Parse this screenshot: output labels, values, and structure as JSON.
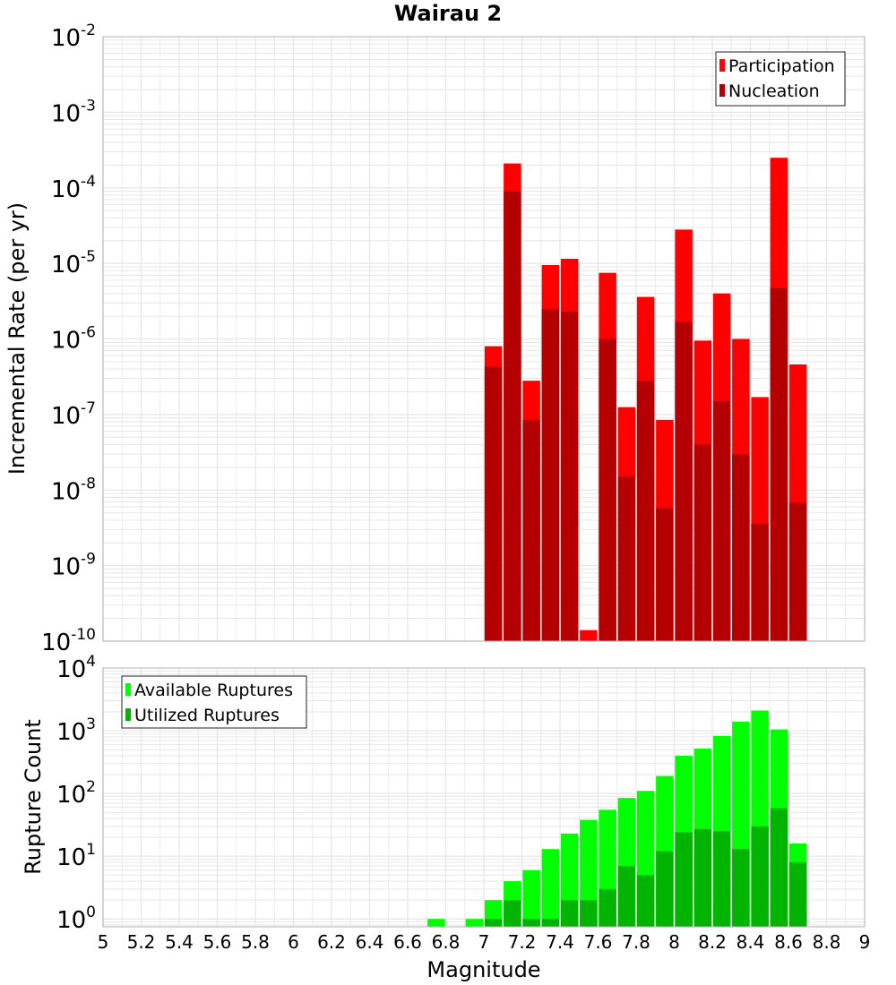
{
  "chart_data": [
    {
      "type": "bar",
      "title": "Wairau 2",
      "ylabel": "Incremental Rate (per yr)",
      "xlabel": "",
      "y_scale": "log",
      "ylim": [
        1e-10,
        0.01
      ],
      "xlim": [
        5,
        9
      ],
      "grid": true,
      "legend_position": "top-right",
      "x": [
        7.05,
        7.15,
        7.25,
        7.35,
        7.45,
        7.55,
        7.65,
        7.75,
        7.85,
        7.95,
        8.05,
        8.15,
        8.25,
        8.35,
        8.45,
        8.55,
        8.65
      ],
      "series": [
        {
          "name": "Participation",
          "color": "#ff0000",
          "values": [
            8e-07,
            0.00021,
            2.8e-07,
            9.5e-06,
            1.15e-05,
            1.4e-10,
            7.5e-06,
            1.25e-07,
            3.6e-06,
            8.5e-08,
            2.8e-05,
            9.5e-07,
            4e-06,
            1e-06,
            1.7e-07,
            0.00025,
            4.6e-07
          ]
        },
        {
          "name": "Nucleation",
          "color": "#b40000",
          "values": [
            4.3e-07,
            9e-05,
            8.5e-08,
            2.5e-06,
            2.3e-06,
            null,
            1e-06,
            1.5e-08,
            2.8e-07,
            5.8e-09,
            1.7e-06,
            4e-08,
            1.5e-07,
            3e-08,
            3.6e-09,
            4.7e-06,
            6.8e-09
          ]
        }
      ]
    },
    {
      "type": "bar",
      "title": "",
      "ylabel": "Rupture Count",
      "xlabel": "Magnitude",
      "y_scale": "log",
      "ylim": [
        0.75,
        10000
      ],
      "xlim": [
        5,
        9
      ],
      "grid": true,
      "legend_position": "top-left",
      "x": [
        6.75,
        6.95,
        7.05,
        7.15,
        7.25,
        7.35,
        7.45,
        7.55,
        7.65,
        7.75,
        7.85,
        7.95,
        8.05,
        8.15,
        8.25,
        8.35,
        8.45,
        8.55,
        8.65
      ],
      "series": [
        {
          "name": "Available Ruptures",
          "color": "#00ff00",
          "values": [
            1,
            1,
            2,
            4,
            6,
            13,
            23,
            38,
            55,
            85,
            110,
            190,
            400,
            520,
            830,
            1400,
            2100,
            1050,
            16
          ]
        },
        {
          "name": "Utilized Ruptures",
          "color": "#00b400",
          "values": [
            null,
            null,
            1,
            2,
            1,
            1,
            2,
            2,
            3,
            7,
            5,
            12,
            24,
            27,
            25,
            13,
            30,
            58,
            8
          ]
        }
      ]
    }
  ],
  "x_ticks": [
    "5",
    "5.2",
    "5.4",
    "5.6",
    "5.8",
    "6",
    "6.2",
    "6.4",
    "6.6",
    "6.8",
    "7",
    "7.2",
    "7.4",
    "7.6",
    "7.8",
    "8",
    "8.2",
    "8.4",
    "8.6",
    "8.8",
    "9"
  ],
  "top_y_ticks": [
    {
      "base": "10",
      "exp": "-2"
    },
    {
      "base": "10",
      "exp": "-3"
    },
    {
      "base": "10",
      "exp": "-4"
    },
    {
      "base": "10",
      "exp": "-5"
    },
    {
      "base": "10",
      "exp": "-6"
    },
    {
      "base": "10",
      "exp": "-7"
    },
    {
      "base": "10",
      "exp": "-8"
    },
    {
      "base": "10",
      "exp": "-9"
    },
    {
      "base": "10",
      "exp": "-10"
    }
  ],
  "bottom_y_ticks": [
    {
      "base": "10",
      "exp": "4"
    },
    {
      "base": "10",
      "exp": "3"
    },
    {
      "base": "10",
      "exp": "2"
    },
    {
      "base": "10",
      "exp": "1"
    },
    {
      "base": "10",
      "exp": "0"
    }
  ],
  "colors": {
    "grid": "#e6e6e6",
    "frame": "#b0b0b0",
    "participation": "#ff0000",
    "nucleation": "#b40000",
    "available": "#00ff00",
    "utilized": "#00b400"
  }
}
